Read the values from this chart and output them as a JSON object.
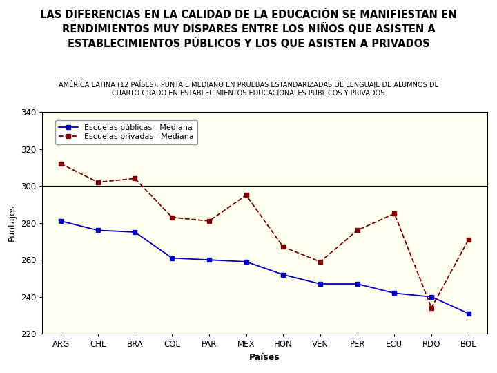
{
  "title": "LAS DIFERENCIAS EN LA CALIDAD DE LA EDUCACIÓN SE MANIFIESTAN EN\nRENDIMIENTOS MUY DISPARES ENTRE LOS NIÑOS QUE ASISTEN A\nESTABLECIMIENTOS PÚBLICOS Y LOS QUE ASISTEN A PRIVADOS",
  "subtitle": "AMÉRICA LATINA (12 PAÍSES): PUNTAJE MEDIANO EN PRUEBAS ESTANDARIZADAS DE LENGUAJE DE ALUMNOS DE\nCUARTO GRADO EN ESTABLECIMIENTOS EDUCACIONALES PÚBLICOS Y PRIVADOS",
  "xlabel": "Países",
  "ylabel": "Puntajes",
  "categories": [
    "ARG",
    "CHL",
    "BRA",
    "COL",
    "PAR",
    "MEX",
    "HON",
    "VEN",
    "PER",
    "ECU",
    "RDO",
    "BOL"
  ],
  "public_values": [
    281,
    276,
    275,
    261,
    260,
    259,
    252,
    247,
    247,
    242,
    240,
    231
  ],
  "private_values": [
    312,
    302,
    304,
    283,
    281,
    295,
    267,
    259,
    276,
    285,
    234,
    271
  ],
  "public_color": "#0000BB",
  "private_color": "#7B0000",
  "background_color": "#FFFFF0",
  "fig_background": "#FFFFFF",
  "ylim": [
    220,
    340
  ],
  "yticks": [
    220,
    240,
    260,
    280,
    300,
    320,
    340
  ],
  "hline_y": 300,
  "legend_public": "Escuelas públicas - Mediana",
  "legend_private": "Escuelas privadas - Mediana",
  "title_fontsize": 10.5,
  "subtitle_fontsize": 7.0,
  "axis_label_fontsize": 9,
  "tick_fontsize": 8.5,
  "legend_fontsize": 8.0
}
